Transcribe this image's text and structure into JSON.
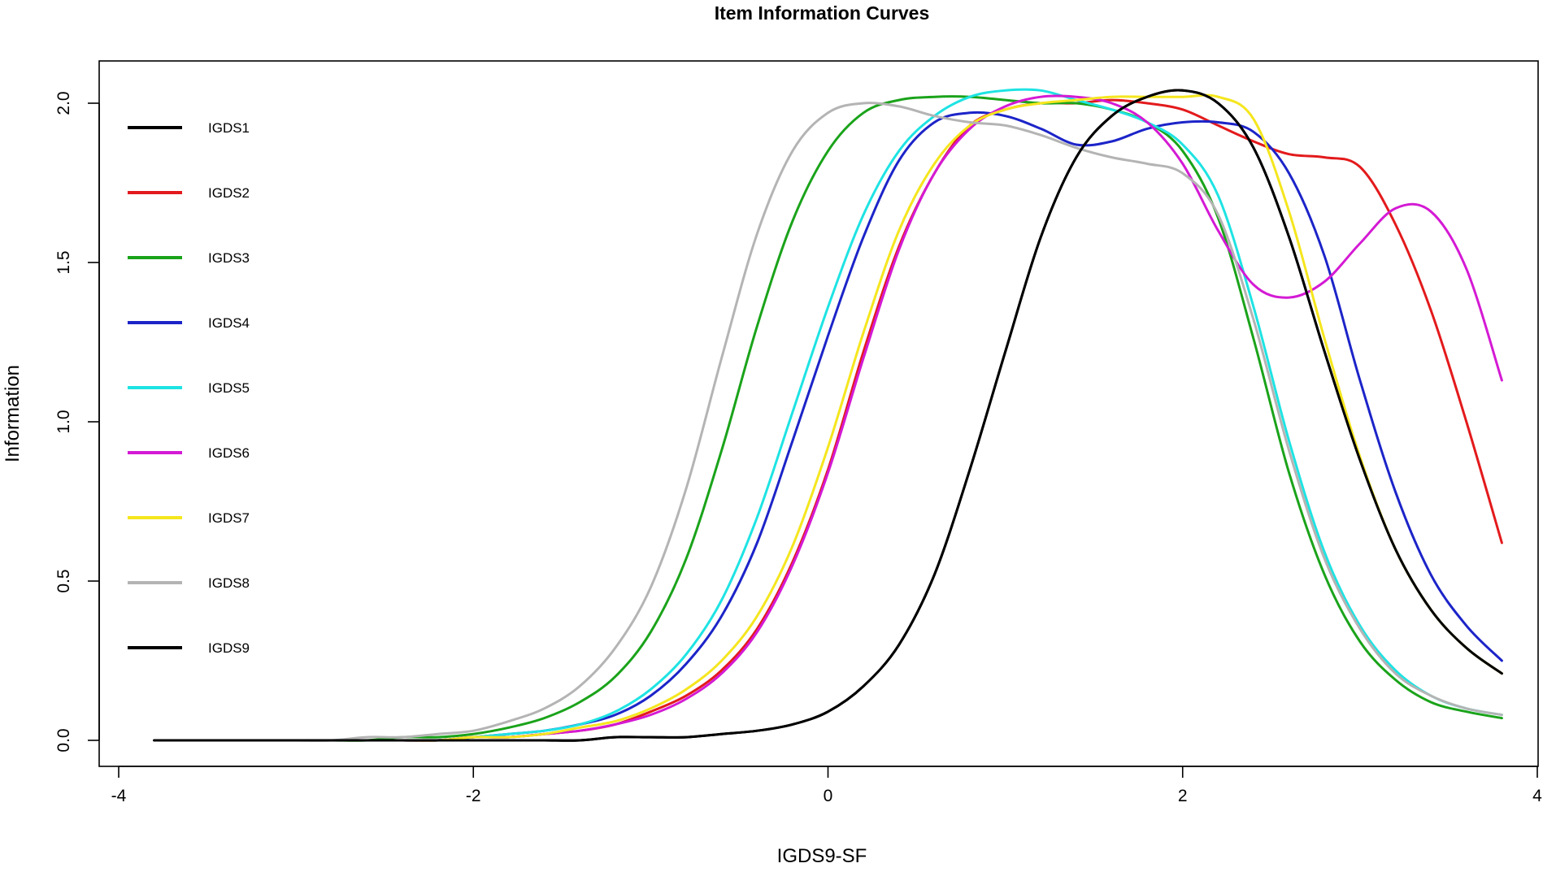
{
  "chart_data": {
    "type": "line",
    "title": "Item Information Curves",
    "xlabel": "IGDS9-SF",
    "ylabel": "Information",
    "xlim": [
      -4,
      4
    ],
    "ylim": [
      0,
      2
    ],
    "x_ticks": [
      -4,
      -2,
      0,
      2,
      4
    ],
    "y_ticks": [
      "0.0",
      "0.5",
      "1.0",
      "1.5",
      "2.0"
    ],
    "grid": false,
    "legend_position": "top-left",
    "x": [
      -3.8,
      -3.6,
      -3.4,
      -3.2,
      -3.0,
      -2.8,
      -2.6,
      -2.4,
      -2.2,
      -2.0,
      -1.8,
      -1.6,
      -1.4,
      -1.2,
      -1.0,
      -0.8,
      -0.6,
      -0.4,
      -0.2,
      0.0,
      0.2,
      0.4,
      0.6,
      0.8,
      1.0,
      1.2,
      1.4,
      1.6,
      1.8,
      2.0,
      2.2,
      2.4,
      2.6,
      2.8,
      3.0,
      3.2,
      3.4,
      3.6,
      3.8
    ],
    "series": [
      {
        "name": "IGDS1",
        "color": "#000000",
        "values": [
          0.0,
          0.0,
          0.0,
          0.0,
          0.0,
          0.0,
          0.0,
          0.0,
          0.0,
          0.0,
          0.0,
          0.0,
          0.0,
          0.01,
          0.01,
          0.01,
          0.02,
          0.03,
          0.05,
          0.09,
          0.17,
          0.3,
          0.52,
          0.85,
          1.22,
          1.58,
          1.83,
          1.96,
          2.02,
          2.04,
          2.0,
          1.86,
          1.58,
          1.22,
          0.88,
          0.6,
          0.41,
          0.29,
          0.21
        ]
      },
      {
        "name": "IGDS2",
        "color": "#e31a1c",
        "values": [
          0.0,
          0.0,
          0.0,
          0.0,
          0.0,
          0.0,
          0.0,
          0.0,
          0.0,
          0.01,
          0.01,
          0.02,
          0.03,
          0.05,
          0.09,
          0.14,
          0.22,
          0.35,
          0.56,
          0.85,
          1.22,
          1.55,
          1.78,
          1.93,
          1.98,
          2.0,
          2.0,
          2.01,
          2.0,
          1.98,
          1.93,
          1.88,
          1.84,
          1.83,
          1.8,
          1.62,
          1.35,
          1.0,
          0.62
        ]
      },
      {
        "name": "IGDS3",
        "color": "#1aa31a",
        "values": [
          0.0,
          0.0,
          0.0,
          0.0,
          0.0,
          0.0,
          0.0,
          0.01,
          0.01,
          0.02,
          0.04,
          0.07,
          0.12,
          0.2,
          0.34,
          0.57,
          0.91,
          1.3,
          1.63,
          1.85,
          1.97,
          2.01,
          2.02,
          2.02,
          2.01,
          2.0,
          2.0,
          1.98,
          1.94,
          1.85,
          1.64,
          1.26,
          0.84,
          0.52,
          0.31,
          0.19,
          0.12,
          0.09,
          0.07
        ]
      },
      {
        "name": "IGDS4",
        "color": "#1c24c8",
        "values": [
          0.0,
          0.0,
          0.0,
          0.0,
          0.0,
          0.0,
          0.0,
          0.0,
          0.0,
          0.01,
          0.02,
          0.03,
          0.05,
          0.08,
          0.14,
          0.24,
          0.39,
          0.62,
          0.94,
          1.27,
          1.58,
          1.82,
          1.94,
          1.97,
          1.96,
          1.92,
          1.87,
          1.88,
          1.92,
          1.94,
          1.94,
          1.91,
          1.78,
          1.52,
          1.13,
          0.78,
          0.52,
          0.36,
          0.25
        ]
      },
      {
        "name": "IGDS5",
        "color": "#1ee3e3",
        "values": [
          0.0,
          0.0,
          0.0,
          0.0,
          0.0,
          0.0,
          0.0,
          0.0,
          0.0,
          0.01,
          0.02,
          0.03,
          0.05,
          0.09,
          0.16,
          0.27,
          0.44,
          0.7,
          1.03,
          1.36,
          1.65,
          1.85,
          1.96,
          2.02,
          2.04,
          2.04,
          2.01,
          1.98,
          1.94,
          1.87,
          1.71,
          1.36,
          0.94,
          0.59,
          0.36,
          0.22,
          0.14,
          0.1,
          0.08
        ]
      },
      {
        "name": "IGDS6",
        "color": "#d41ad4",
        "values": [
          0.0,
          0.0,
          0.0,
          0.0,
          0.0,
          0.0,
          0.0,
          0.0,
          0.0,
          0.01,
          0.01,
          0.02,
          0.03,
          0.05,
          0.08,
          0.13,
          0.21,
          0.34,
          0.55,
          0.84,
          1.2,
          1.54,
          1.78,
          1.92,
          1.99,
          2.02,
          2.02,
          2.0,
          1.94,
          1.81,
          1.6,
          1.43,
          1.39,
          1.44,
          1.56,
          1.67,
          1.66,
          1.48,
          1.13
        ]
      },
      {
        "name": "IGDS7",
        "color": "#f5e61e",
        "values": [
          0.0,
          0.0,
          0.0,
          0.0,
          0.0,
          0.0,
          0.0,
          0.0,
          0.0,
          0.01,
          0.01,
          0.02,
          0.04,
          0.06,
          0.1,
          0.16,
          0.25,
          0.39,
          0.61,
          0.92,
          1.28,
          1.6,
          1.81,
          1.93,
          1.98,
          2.0,
          2.01,
          2.02,
          2.02,
          2.02,
          2.02,
          1.95,
          1.66,
          1.26,
          0.89,
          0.6,
          0.41,
          0.29,
          0.21
        ]
      },
      {
        "name": "IGDS8",
        "color": "#b4b4b4",
        "values": [
          0.0,
          0.0,
          0.0,
          0.0,
          0.0,
          0.0,
          0.01,
          0.01,
          0.02,
          0.03,
          0.06,
          0.1,
          0.17,
          0.29,
          0.48,
          0.79,
          1.2,
          1.59,
          1.85,
          1.97,
          2.0,
          1.99,
          1.96,
          1.94,
          1.93,
          1.9,
          1.86,
          1.83,
          1.81,
          1.78,
          1.65,
          1.32,
          0.91,
          0.57,
          0.35,
          0.21,
          0.14,
          0.1,
          0.08
        ]
      },
      {
        "name": "IGDS9",
        "color": "#000000",
        "values": [
          0.0,
          0.0,
          0.0,
          0.0,
          0.0,
          0.0,
          0.0,
          0.0,
          0.0,
          0.0,
          0.0,
          0.0,
          0.0,
          0.01,
          0.01,
          0.01,
          0.02,
          0.03,
          0.05,
          0.09,
          0.17,
          0.3,
          0.52,
          0.85,
          1.22,
          1.58,
          1.83,
          1.96,
          2.02,
          2.04,
          2.0,
          1.86,
          1.58,
          1.22,
          0.88,
          0.6,
          0.41,
          0.29,
          0.21
        ]
      }
    ]
  }
}
